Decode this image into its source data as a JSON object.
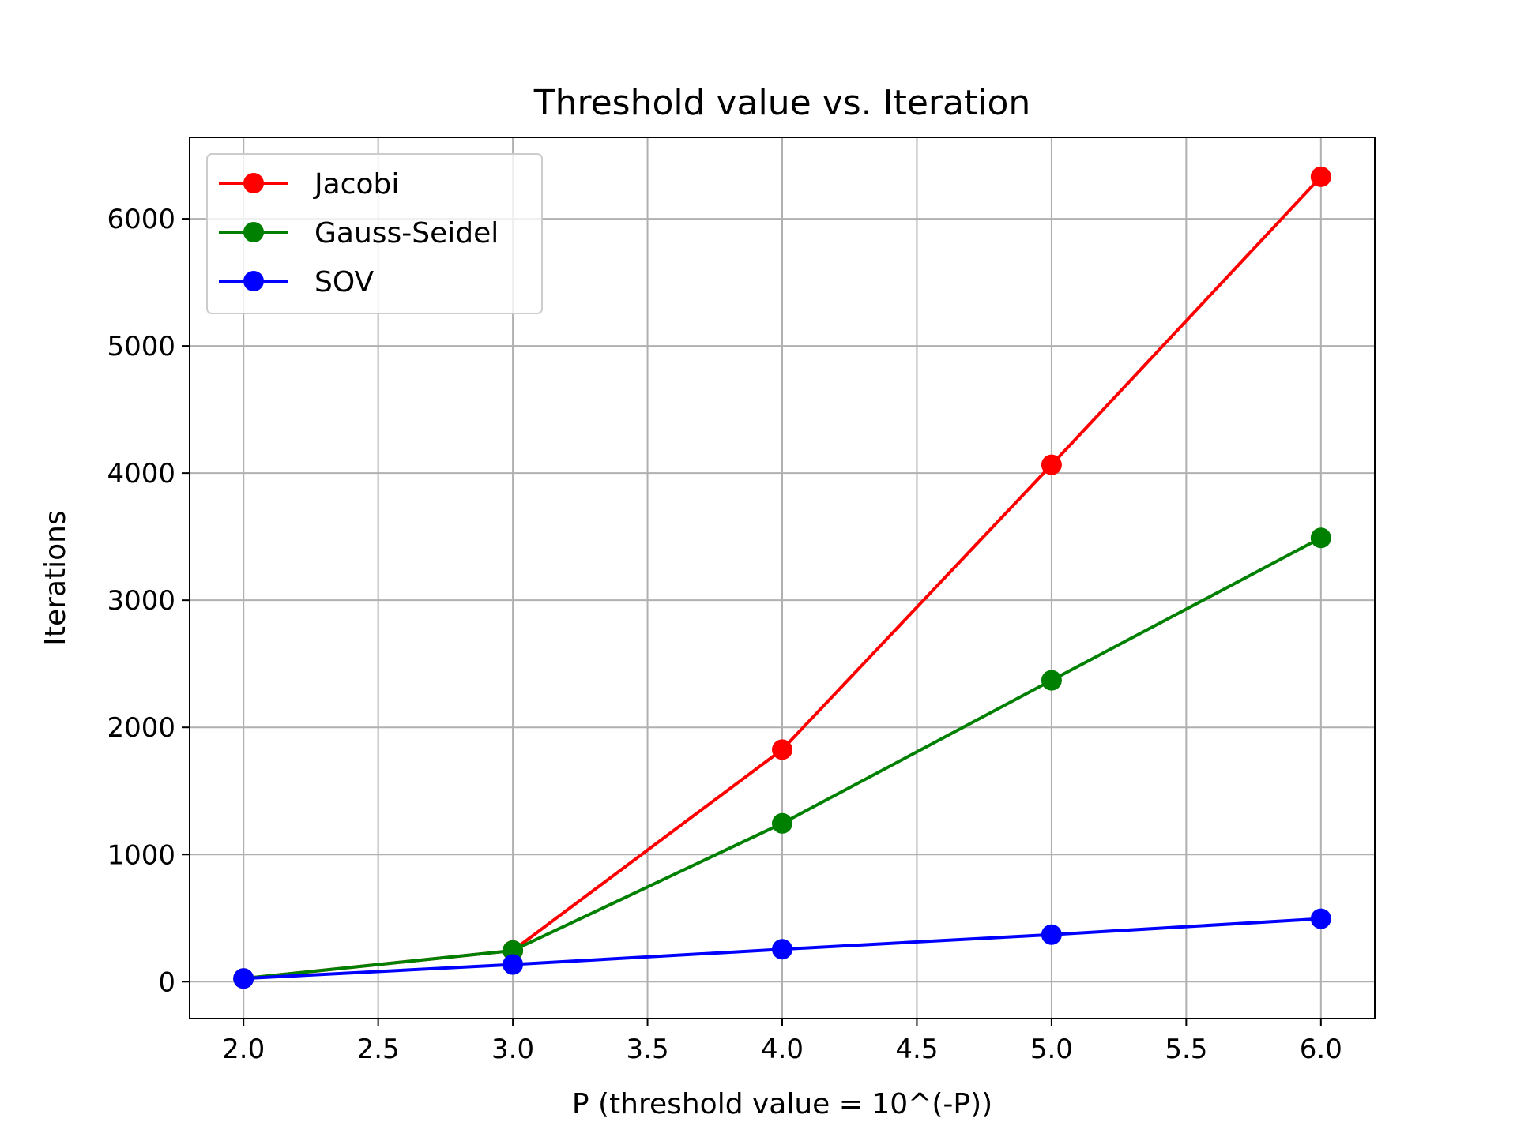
{
  "chart_data": {
    "type": "line",
    "title": "Threshold value vs. Iteration",
    "xlabel": "P (threshold value = 10^(-P))",
    "ylabel": "Iterations",
    "xlim": [
      1.8,
      6.2
    ],
    "ylim": [
      -290,
      6640
    ],
    "xticks": [
      2.0,
      2.5,
      3.0,
      3.5,
      4.0,
      4.5,
      5.0,
      5.5,
      6.0
    ],
    "xtick_labels": [
      "2.0",
      "2.5",
      "3.0",
      "3.5",
      "4.0",
      "4.5",
      "5.0",
      "5.5",
      "6.0"
    ],
    "yticks": [
      0,
      1000,
      2000,
      3000,
      4000,
      5000,
      6000
    ],
    "ytick_labels": [
      "0",
      "1000",
      "2000",
      "3000",
      "4000",
      "5000",
      "6000"
    ],
    "grid": true,
    "legend_position": "top-left",
    "x": [
      2.0,
      3.0,
      4.0,
      5.0,
      6.0
    ],
    "series": [
      {
        "name": "Jacobi",
        "color": "#ff0000",
        "values": [
          25,
          245,
          1825,
          4065,
          6330
        ]
      },
      {
        "name": "Gauss-Seidel",
        "color": "#008000",
        "values": [
          25,
          245,
          1245,
          2370,
          3490
        ]
      },
      {
        "name": "SOV",
        "color": "#0000ff",
        "values": [
          25,
          135,
          255,
          370,
          495
        ]
      }
    ]
  }
}
